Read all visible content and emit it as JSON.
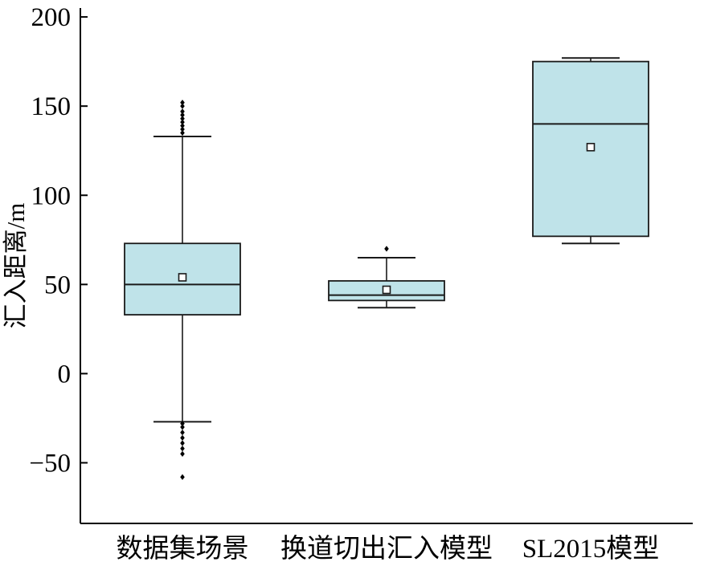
{
  "chart_data": {
    "type": "boxplot",
    "title": "",
    "xlabel": "",
    "ylabel": "汇入距离/m",
    "ylim": [
      -84,
      205
    ],
    "yticks": [
      200,
      150,
      100,
      50,
      0,
      -50
    ],
    "grid": false,
    "legend": "none",
    "categories": [
      "数据集场景",
      "换道切出汇入模型",
      "SL2015模型"
    ],
    "series": [
      {
        "name": "数据集场景",
        "whisker_low": -27,
        "q1": 33,
        "median": 50,
        "q3": 73,
        "whisker_high": 133,
        "mean": 54,
        "outliers_high": [
          135,
          137,
          139,
          141,
          143,
          145,
          147,
          150,
          152
        ],
        "outliers_low": [
          -28,
          -30,
          -33,
          -36,
          -39,
          -42,
          -45,
          -58
        ]
      },
      {
        "name": "换道切出汇入模型",
        "whisker_low": 37,
        "q1": 41,
        "median": 44,
        "q3": 52,
        "whisker_high": 65,
        "mean": 47,
        "outliers_high": [
          70
        ],
        "outliers_low": []
      },
      {
        "name": "SL2015模型",
        "whisker_low": 73,
        "q1": 77,
        "median": 140,
        "q3": 175,
        "whisker_high": 177,
        "mean": 127,
        "outliers_high": [],
        "outliers_low": []
      }
    ],
    "box_fill": "#bfe3e9",
    "box_stroke": "#1a1a1a",
    "axis_color": "#000000",
    "mean_marker": "open-square",
    "outlier_marker": "diamond"
  }
}
